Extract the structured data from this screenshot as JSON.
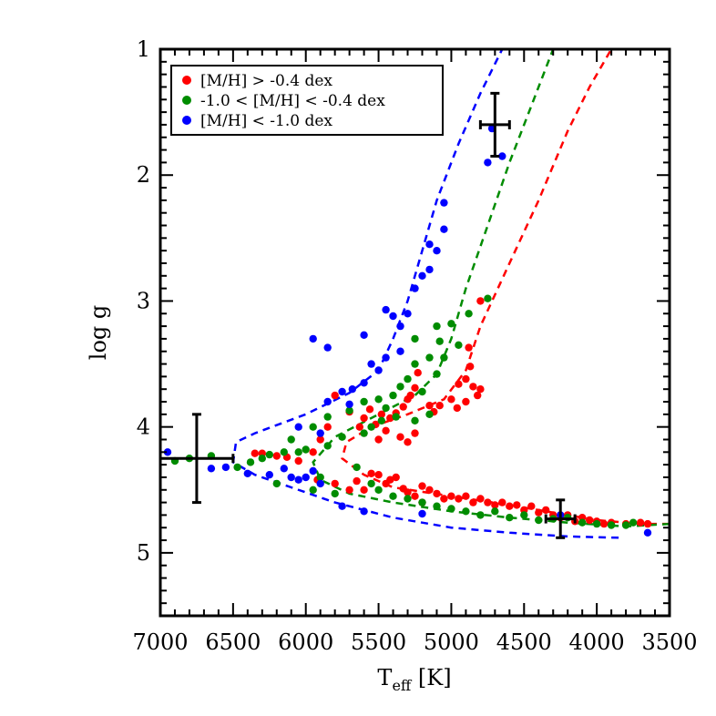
{
  "chart_data": {
    "type": "scatter",
    "xlabel": {
      "main": "T",
      "sub": "eff",
      "unit": " [K]"
    },
    "ylabel": "log g",
    "xlim": [
      7000,
      3500
    ],
    "ylim": [
      5.5,
      1.0
    ],
    "x_reversed": true,
    "y_reversed": true,
    "x_ticks": [
      "7000",
      "6500",
      "6000",
      "5500",
      "5000",
      "4500",
      "4000",
      "3500"
    ],
    "x_tick_values": [
      7000,
      6500,
      6000,
      5500,
      5000,
      4500,
      4000,
      3500
    ],
    "y_ticks": [
      "1",
      "2",
      "3",
      "4",
      "5"
    ],
    "y_tick_values": [
      1,
      2,
      3,
      4,
      5
    ],
    "legend_position": "top-left",
    "series": [
      {
        "name": "[M/H] > -0.4 dex",
        "color": "#ff0000",
        "points": [
          [
            4800,
            3.0
          ],
          [
            4880,
            3.37
          ],
          [
            4870,
            3.52
          ],
          [
            4900,
            3.62
          ],
          [
            4950,
            3.66
          ],
          [
            4850,
            3.68
          ],
          [
            4800,
            3.7
          ],
          [
            4820,
            3.75
          ],
          [
            4900,
            3.8
          ],
          [
            4960,
            3.85
          ],
          [
            5000,
            3.78
          ],
          [
            5080,
            3.83
          ],
          [
            5120,
            3.88
          ],
          [
            5150,
            3.83
          ],
          [
            5230,
            3.57
          ],
          [
            5250,
            3.69
          ],
          [
            5280,
            3.75
          ],
          [
            5300,
            3.78
          ],
          [
            5330,
            3.84
          ],
          [
            5380,
            3.89
          ],
          [
            5420,
            3.93
          ],
          [
            5480,
            3.9
          ],
          [
            5520,
            3.98
          ],
          [
            5560,
            3.86
          ],
          [
            5600,
            3.93
          ],
          [
            5630,
            4.0
          ],
          [
            5450,
            4.03
          ],
          [
            5350,
            4.08
          ],
          [
            5300,
            4.12
          ],
          [
            5250,
            4.05
          ],
          [
            5500,
            4.1
          ],
          [
            5700,
            3.88
          ],
          [
            5800,
            3.75
          ],
          [
            5850,
            4.0
          ],
          [
            5900,
            4.1
          ],
          [
            5950,
            4.2
          ],
          [
            6050,
            4.27
          ],
          [
            6130,
            4.24
          ],
          [
            6200,
            4.23
          ],
          [
            6300,
            4.21
          ],
          [
            6350,
            4.21
          ],
          [
            5920,
            4.42
          ],
          [
            5800,
            4.45
          ],
          [
            5700,
            4.5
          ],
          [
            5600,
            4.5
          ],
          [
            5500,
            4.38
          ],
          [
            5420,
            4.42
          ],
          [
            5380,
            4.4
          ],
          [
            5330,
            4.49
          ],
          [
            5300,
            4.52
          ],
          [
            5250,
            4.55
          ],
          [
            5200,
            4.47
          ],
          [
            5150,
            4.5
          ],
          [
            5100,
            4.53
          ],
          [
            5050,
            4.57
          ],
          [
            5000,
            4.55
          ],
          [
            4950,
            4.57
          ],
          [
            4900,
            4.55
          ],
          [
            4850,
            4.6
          ],
          [
            4800,
            4.57
          ],
          [
            4750,
            4.6
          ],
          [
            4700,
            4.62
          ],
          [
            4650,
            4.6
          ],
          [
            4600,
            4.63
          ],
          [
            4550,
            4.62
          ],
          [
            4500,
            4.66
          ],
          [
            4450,
            4.63
          ],
          [
            4400,
            4.68
          ],
          [
            4350,
            4.66
          ],
          [
            4300,
            4.7
          ],
          [
            4250,
            4.72
          ],
          [
            4200,
            4.7
          ],
          [
            4150,
            4.75
          ],
          [
            4100,
            4.72
          ],
          [
            4050,
            4.74
          ],
          [
            4000,
            4.75
          ],
          [
            3950,
            4.77
          ],
          [
            3900,
            4.76
          ],
          [
            3800,
            4.77
          ],
          [
            3700,
            4.76
          ],
          [
            3650,
            4.77
          ],
          [
            5650,
            4.43
          ],
          [
            5550,
            4.37
          ],
          [
            5450,
            4.45
          ],
          [
            5200,
            4.6
          ]
        ]
      },
      {
        "name": "-1.0 < [M/H] < -0.4 dex",
        "color": "#008c00",
        "points": [
          [
            4750,
            2.98
          ],
          [
            4880,
            3.1
          ],
          [
            5000,
            3.18
          ],
          [
            5080,
            3.32
          ],
          [
            4950,
            3.35
          ],
          [
            5050,
            3.45
          ],
          [
            5150,
            3.45
          ],
          [
            5250,
            3.5
          ],
          [
            5100,
            3.58
          ],
          [
            5300,
            3.62
          ],
          [
            5350,
            3.68
          ],
          [
            5200,
            3.72
          ],
          [
            5400,
            3.75
          ],
          [
            5500,
            3.78
          ],
          [
            5600,
            3.8
          ],
          [
            5450,
            3.85
          ],
          [
            5380,
            3.92
          ],
          [
            5480,
            3.95
          ],
          [
            5550,
            4.0
          ],
          [
            5250,
            3.95
          ],
          [
            5150,
            3.9
          ],
          [
            5700,
            3.87
          ],
          [
            5850,
            3.92
          ],
          [
            5950,
            4.0
          ],
          [
            6100,
            4.1
          ],
          [
            5850,
            4.15
          ],
          [
            5750,
            4.08
          ],
          [
            6000,
            4.18
          ],
          [
            6050,
            4.2
          ],
          [
            6150,
            4.2
          ],
          [
            6250,
            4.22
          ],
          [
            6300,
            4.25
          ],
          [
            6380,
            4.28
          ],
          [
            5600,
            4.05
          ],
          [
            5650,
            4.32
          ],
          [
            5550,
            4.45
          ],
          [
            5500,
            4.5
          ],
          [
            5400,
            4.55
          ],
          [
            5300,
            4.57
          ],
          [
            5200,
            4.6
          ],
          [
            5100,
            4.63
          ],
          [
            5000,
            4.65
          ],
          [
            4900,
            4.67
          ],
          [
            4800,
            4.7
          ],
          [
            4700,
            4.67
          ],
          [
            4600,
            4.72
          ],
          [
            4500,
            4.7
          ],
          [
            4400,
            4.74
          ],
          [
            4300,
            4.73
          ],
          [
            4200,
            4.72
          ],
          [
            4100,
            4.76
          ],
          [
            4000,
            4.77
          ],
          [
            3900,
            4.78
          ],
          [
            3800,
            4.78
          ],
          [
            3750,
            4.76
          ],
          [
            6800,
            4.25
          ],
          [
            6650,
            4.23
          ],
          [
            6900,
            4.27
          ],
          [
            6470,
            4.32
          ],
          [
            5950,
            4.5
          ],
          [
            5800,
            4.53
          ],
          [
            5900,
            4.4
          ],
          [
            6200,
            4.45
          ],
          [
            5100,
            3.2
          ],
          [
            5250,
            3.3
          ]
        ]
      },
      {
        "name": "[M/H] < -1.0 dex",
        "color": "#0000ff",
        "points": [
          [
            4650,
            1.85
          ],
          [
            4720,
            1.63
          ],
          [
            4750,
            1.9
          ],
          [
            5050,
            2.22
          ],
          [
            5050,
            2.43
          ],
          [
            5150,
            2.55
          ],
          [
            5100,
            2.6
          ],
          [
            5150,
            2.75
          ],
          [
            5200,
            2.8
          ],
          [
            5250,
            2.9
          ],
          [
            5450,
            3.07
          ],
          [
            5300,
            3.1
          ],
          [
            5400,
            3.12
          ],
          [
            5350,
            3.2
          ],
          [
            5600,
            3.27
          ],
          [
            5350,
            3.4
          ],
          [
            5450,
            3.45
          ],
          [
            5550,
            3.5
          ],
          [
            5950,
            3.3
          ],
          [
            5850,
            3.37
          ],
          [
            5600,
            3.65
          ],
          [
            5680,
            3.7
          ],
          [
            5750,
            3.72
          ],
          [
            5500,
            3.55
          ],
          [
            5700,
            3.82
          ],
          [
            5850,
            3.8
          ],
          [
            6050,
            4.0
          ],
          [
            5900,
            4.05
          ],
          [
            6650,
            4.33
          ],
          [
            6550,
            4.32
          ],
          [
            6400,
            4.37
          ],
          [
            6250,
            4.38
          ],
          [
            6100,
            4.4
          ],
          [
            6000,
            4.4
          ],
          [
            5900,
            4.45
          ],
          [
            5750,
            4.63
          ],
          [
            5600,
            4.67
          ],
          [
            5200,
            4.69
          ],
          [
            6950,
            4.2
          ],
          [
            3650,
            4.84
          ],
          [
            4250,
            4.7
          ],
          [
            6150,
            4.33
          ],
          [
            6050,
            4.42
          ],
          [
            5950,
            4.35
          ]
        ]
      }
    ],
    "isochrones": [
      {
        "color": "#ff0000",
        "points": [
          [
            3500,
            4.77
          ],
          [
            3700,
            4.77
          ],
          [
            4000,
            4.74
          ],
          [
            4300,
            4.68
          ],
          [
            4600,
            4.62
          ],
          [
            5000,
            4.55
          ],
          [
            5400,
            4.48
          ],
          [
            5600,
            4.38
          ],
          [
            5750,
            4.25
          ],
          [
            5720,
            4.12
          ],
          [
            5550,
            4.0
          ],
          [
            5300,
            3.9
          ],
          [
            5050,
            3.78
          ],
          [
            4900,
            3.55
          ],
          [
            4800,
            3.2
          ],
          [
            4600,
            2.7
          ],
          [
            4400,
            2.2
          ],
          [
            4200,
            1.65
          ],
          [
            4050,
            1.3
          ],
          [
            3900,
            1.0
          ]
        ]
      },
      {
        "color": "#008c00",
        "points": [
          [
            3500,
            4.77
          ],
          [
            3800,
            4.79
          ],
          [
            4200,
            4.76
          ],
          [
            4600,
            4.72
          ],
          [
            5000,
            4.67
          ],
          [
            5400,
            4.6
          ],
          [
            5700,
            4.53
          ],
          [
            5900,
            4.42
          ],
          [
            5950,
            4.28
          ],
          [
            5800,
            4.08
          ],
          [
            5500,
            3.9
          ],
          [
            5250,
            3.75
          ],
          [
            5100,
            3.58
          ],
          [
            5000,
            3.3
          ],
          [
            4900,
            2.9
          ],
          [
            4750,
            2.4
          ],
          [
            4600,
            1.9
          ],
          [
            4450,
            1.45
          ],
          [
            4300,
            1.0
          ]
        ]
      },
      {
        "color": "#0000ff",
        "points": [
          [
            3850,
            4.88
          ],
          [
            4200,
            4.87
          ],
          [
            4600,
            4.84
          ],
          [
            5000,
            4.8
          ],
          [
            5400,
            4.72
          ],
          [
            5800,
            4.6
          ],
          [
            6100,
            4.48
          ],
          [
            6350,
            4.38
          ],
          [
            6500,
            4.28
          ],
          [
            6480,
            4.12
          ],
          [
            6350,
            4.05
          ],
          [
            6000,
            3.9
          ],
          [
            5700,
            3.73
          ],
          [
            5500,
            3.55
          ],
          [
            5400,
            3.3
          ],
          [
            5300,
            3.0
          ],
          [
            5200,
            2.6
          ],
          [
            5100,
            2.2
          ],
          [
            4950,
            1.75
          ],
          [
            4800,
            1.35
          ],
          [
            4650,
            1.0
          ]
        ]
      }
    ],
    "error_bars": [
      {
        "x": 6750,
        "y": 4.25,
        "xerr": 250,
        "yerr": 0.35
      },
      {
        "x": 4700,
        "y": 1.6,
        "xerr": 100,
        "yerr": 0.25
      },
      {
        "x": 4250,
        "y": 4.73,
        "xerr": 100,
        "yerr": 0.15
      }
    ]
  }
}
